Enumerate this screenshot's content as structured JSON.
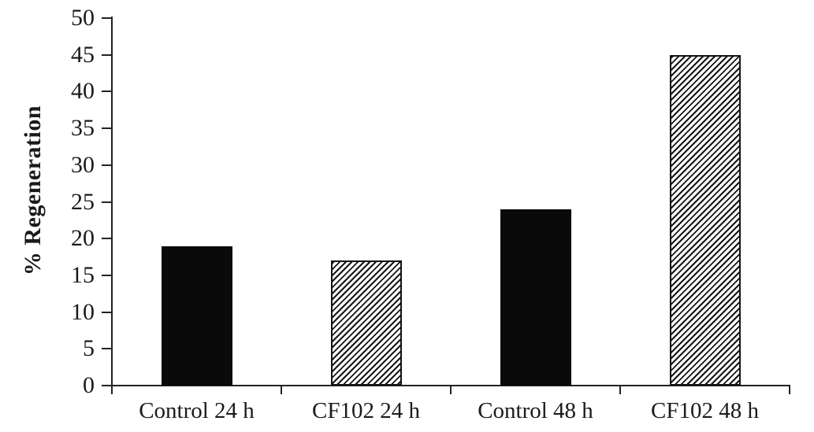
{
  "chart_data": {
    "type": "bar",
    "categories": [
      "Control 24 h",
      "CF102 24 h",
      "Control 48 h",
      "CF102 48 h"
    ],
    "values": [
      19,
      17,
      24,
      45
    ],
    "bar_styles": [
      "solid",
      "hatched",
      "solid",
      "hatched"
    ],
    "title": "",
    "xlabel": "",
    "ylabel": "% Regeneration",
    "ylim": [
      0,
      50
    ],
    "ytick_step": 5,
    "yticks": [
      0,
      5,
      10,
      15,
      20,
      25,
      30,
      35,
      40,
      45,
      50
    ],
    "grid": false,
    "legend": "none",
    "colors": {
      "solid_bar": "#0a0a0a",
      "hatch_line": "#151515",
      "axis": "#222222",
      "text": "#1b1b1b",
      "background": "#ffffff"
    }
  }
}
